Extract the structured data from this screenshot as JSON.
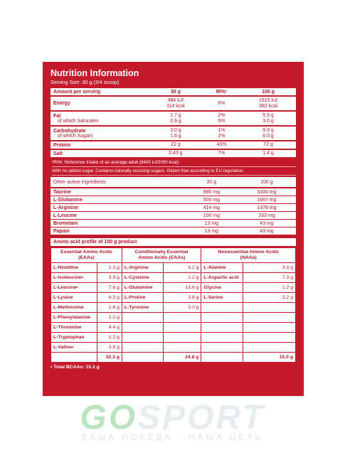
{
  "header": {
    "title": "Nutrition Information",
    "serving": "Serving Size: 30 g (3/4 scoop)"
  },
  "nutrition": {
    "head": [
      "Amount per serving",
      "30 g",
      "RI%¹",
      "100 g"
    ],
    "rows": [
      {
        "label": "Energy",
        "sub": "",
        "v30": "484 kJ/\n114 kcal",
        "ri": "6%",
        "v100": "1615 kJ/\n382 kcal"
      },
      {
        "label": "Fat",
        "sub": "of which Saturates",
        "v30": "1.7 g",
        "v30b": "0.9 g",
        "ri": "2%",
        "rib": "5%",
        "v100": "5.5 g",
        "v100b": "3.0 g"
      },
      {
        "label": "Carbohydrate",
        "sub": "of which Sugars",
        "v30": "3.0 g",
        "v30b": "1.8 g",
        "ri": "1%",
        "rib": "2%",
        "v100": "9.9 g",
        "v100b": "6.0 g"
      },
      {
        "label": "Protein",
        "sub": "",
        "v30": "22 g",
        "ri": "43%",
        "v100": "72 g"
      },
      {
        "label": "Salt",
        "sub": "",
        "v30": "0.43 g",
        "ri": "7%",
        "v100": "1.4 g"
      }
    ],
    "note1": "¹RI%: Reference Intake of an average adult (8400 kJ/2000 kcal).",
    "note2": "With no added sugar. Contains naturally occuring sugars. Gluten free according to EU regulation."
  },
  "active": {
    "head": [
      "Other active ingredients",
      "30 g",
      "100 g"
    ],
    "rows": [
      [
        "Taurine",
        "990 mg",
        "3300 mg"
      ],
      [
        "L-Glutamine",
        "500 mg",
        "1667 mg"
      ],
      [
        "L-Arginine",
        "414 mg",
        "1378 mg"
      ],
      [
        "L-Leucine",
        "100 mg",
        "333 mg"
      ],
      [
        "Bromelain",
        "13 mg",
        "43 mg"
      ],
      [
        "Papain",
        "13 mg",
        "43 mg"
      ]
    ]
  },
  "amino": {
    "title": "Amino acid profile of 100 g product",
    "headers": [
      "Essential Amino Acids\n(EAAs)",
      "Conditionally Essential\nAmino Acids (CAAs)",
      "Nonessential Amino Acids\n(NAAs)"
    ],
    "rows": [
      [
        "L-Histidine",
        "1.3 g",
        "L-Arginine",
        "3.2 g",
        "L-Alanine",
        "3.3 g"
      ],
      [
        "L-Isoleucine•",
        "3.9 g",
        "L-Cysteine",
        "2.2 g",
        "L-Aspartic acid",
        "7.3 g"
      ],
      [
        "L-Leucine•",
        "7.6 g",
        "L-Glutamine",
        "13.6 g",
        "Glycine",
        "1.2 g"
      ],
      [
        "L-Lysine",
        "6.3 g",
        "L-Proline",
        "3.8 g",
        "L-Serine",
        "3.2 g"
      ],
      [
        "L-Methionine",
        "1.6 g",
        "L-Tyrosine",
        "2.0 g",
        "",
        ""
      ],
      [
        "L-Phenylalanine",
        "2.2 g",
        "",
        "",
        "",
        ""
      ],
      [
        "L-Threonine",
        "4.4 g",
        "",
        "",
        "",
        ""
      ],
      [
        "L-Tryptophan",
        "1.2 g",
        "",
        "",
        "",
        ""
      ],
      [
        "L-Valine•",
        "3.8 g",
        "",
        "",
        "",
        ""
      ]
    ],
    "totals": [
      "32.3 g",
      "24.8 g",
      "15.0 g"
    ],
    "bcaa": "• Total BCAAs: 15.3 g"
  },
  "logo": {
    "word_a": "GO",
    "word_b": "SPORT",
    "tagline": "ВАША ПОБЕДА - НАША ЦЕЛЬ"
  }
}
